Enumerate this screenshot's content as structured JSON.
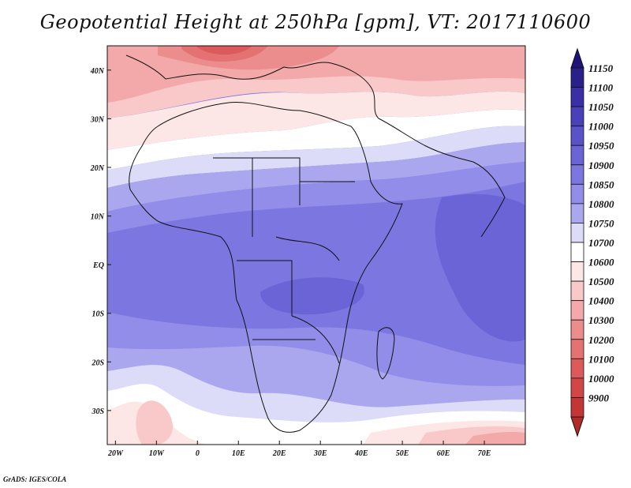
{
  "title": "Geopotential Height at 250hPa [gpm], VT: 2017110600",
  "credit": "GrADS: IGES/COLA",
  "map": {
    "variable": "Geopotential Height",
    "level": "250hPa",
    "units": "gpm",
    "valid_time": "2017110600",
    "region": "Africa",
    "lon_range": [
      -22,
      80
    ],
    "lat_range": [
      -37,
      45
    ],
    "lon_ticks": [
      {
        "value": -20,
        "label": "20W"
      },
      {
        "value": -10,
        "label": "10W"
      },
      {
        "value": 0,
        "label": "0"
      },
      {
        "value": 10,
        "label": "10E"
      },
      {
        "value": 20,
        "label": "20E"
      },
      {
        "value": 30,
        "label": "30E"
      },
      {
        "value": 40,
        "label": "40E"
      },
      {
        "value": 50,
        "label": "50E"
      },
      {
        "value": 60,
        "label": "60E"
      },
      {
        "value": 70,
        "label": "70E"
      }
    ],
    "lat_ticks": [
      {
        "value": 40,
        "label": "40N"
      },
      {
        "value": 30,
        "label": "30N"
      },
      {
        "value": 20,
        "label": "20N"
      },
      {
        "value": 10,
        "label": "10N"
      },
      {
        "value": 0,
        "label": "EQ"
      },
      {
        "value": -10,
        "label": "10S"
      },
      {
        "value": -20,
        "label": "20S"
      },
      {
        "value": -30,
        "label": "30S"
      }
    ]
  },
  "colorbar": {
    "levels": [
      {
        "label": "11150",
        "color": "#2b1f8a"
      },
      {
        "label": "11100",
        "color": "#3a2fa6"
      },
      {
        "label": "11050",
        "color": "#4a40b9"
      },
      {
        "label": "11000",
        "color": "#5a52c9"
      },
      {
        "label": "10950",
        "color": "#6a64d6"
      },
      {
        "label": "10900",
        "color": "#7b76e0"
      },
      {
        "label": "10850",
        "color": "#918de8"
      },
      {
        "label": "10800",
        "color": "#aaa7ef"
      },
      {
        "label": "10750",
        "color": "#dcdbf8"
      },
      {
        "label": "10700",
        "color": "#ffffff"
      },
      {
        "label": "10600",
        "color": "#fde6e6"
      },
      {
        "label": "10500",
        "color": "#f9c9c9"
      },
      {
        "label": "10400",
        "color": "#f3a9a9"
      },
      {
        "label": "10300",
        "color": "#ec8d8d"
      },
      {
        "label": "10200",
        "color": "#e57272"
      },
      {
        "label": "10100",
        "color": "#dd5a5a"
      },
      {
        "label": "10000",
        "color": "#d24646"
      },
      {
        "label": "9900",
        "color": "#c43535"
      }
    ],
    "top_color": "#1f137a",
    "bottom_color": "#b32a2a"
  }
}
